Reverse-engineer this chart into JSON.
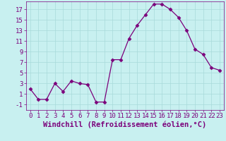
{
  "x": [
    0,
    1,
    2,
    3,
    4,
    5,
    6,
    7,
    8,
    9,
    10,
    11,
    12,
    13,
    14,
    15,
    16,
    17,
    18,
    19,
    20,
    21,
    22,
    23
  ],
  "y": [
    2,
    0,
    0,
    3,
    1.5,
    3.5,
    3,
    2.8,
    -0.5,
    -0.5,
    7.5,
    7.5,
    11.5,
    14,
    16,
    18,
    18,
    17,
    15.5,
    13,
    9.5,
    8.5,
    6,
    5.5
  ],
  "line_color": "#7B007B",
  "marker": "D",
  "marker_size": 2.5,
  "bg_color": "#c8f0f0",
  "grid_color": "#a8dada",
  "xlabel": "Windchill (Refroidissement éolien,°C)",
  "ylabel": "",
  "xlim": [
    -0.5,
    23.5
  ],
  "ylim": [
    -2.0,
    18.5
  ],
  "yticks": [
    -1,
    1,
    3,
    5,
    7,
    9,
    11,
    13,
    15,
    17
  ],
  "xticks": [
    0,
    1,
    2,
    3,
    4,
    5,
    6,
    7,
    8,
    9,
    10,
    11,
    12,
    13,
    14,
    15,
    16,
    17,
    18,
    19,
    20,
    21,
    22,
    23
  ],
  "tick_color": "#7B007B",
  "tick_label_fontsize": 6.5,
  "xlabel_fontsize": 7.5
}
